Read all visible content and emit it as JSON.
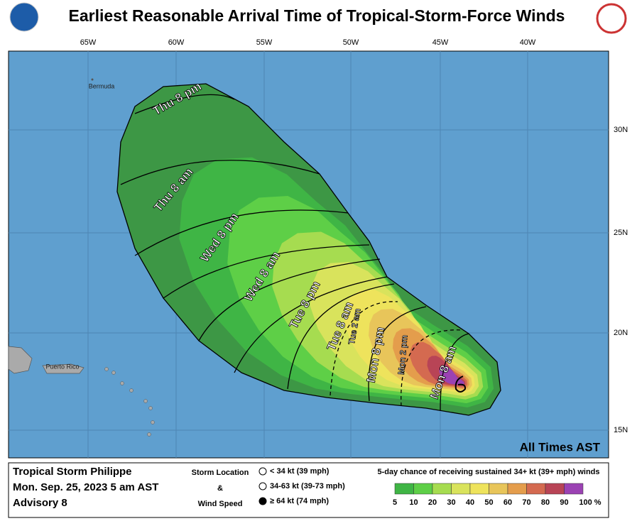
{
  "header": {
    "title": "Earliest Reasonable Arrival Time of Tropical-Storm-Force Winds"
  },
  "map": {
    "lon_labels": [
      "65W",
      "60W",
      "55W",
      "50W",
      "45W",
      "40W"
    ],
    "lat_labels": [
      "30N",
      "25N",
      "20N",
      "15N"
    ],
    "places": [
      "Bermuda",
      "Puerto Rico"
    ],
    "contours": [
      "Thu 8 pm",
      "Thu 8 am",
      "Wed 8 pm",
      "Wed 8 am",
      "Tue 8 pm",
      "Tue 8 am",
      "Tue 2 am",
      "Mon 8 pm",
      "Mon 2 pm",
      "Mon 8 am"
    ],
    "note": "All Times AST"
  },
  "footer": {
    "storm": "Tropical Storm Philippe",
    "date": "Mon. Sep. 25, 2023  5 am AST",
    "advisory": "Advisory 8",
    "key_title": [
      "Storm Location",
      "&",
      "Wind Speed"
    ],
    "key_items": [
      "< 34 kt (39 mph)",
      "34-63 kt (39-73 mph)",
      "≥ 64 kt (74 mph)"
    ],
    "scale_title": "5-day chance of receiving sustained 34+ kt (39+ mph) winds",
    "scale_labels": [
      "5",
      "10",
      "20",
      "30",
      "40",
      "50",
      "60",
      "70",
      "80",
      "90",
      "100 %"
    ]
  }
}
